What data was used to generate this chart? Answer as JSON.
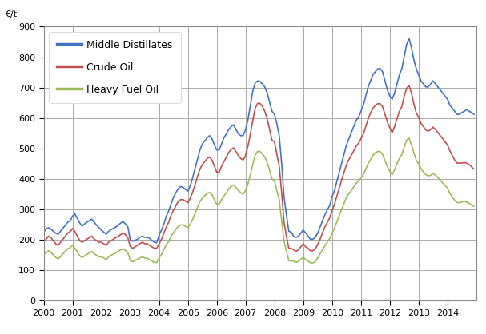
{
  "title": "",
  "unit_label": "€/t",
  "ylim": [
    0,
    900
  ],
  "yticks": [
    0,
    100,
    200,
    300,
    400,
    500,
    600,
    700,
    800,
    900
  ],
  "years": [
    2000,
    2001,
    2002,
    2003,
    2004,
    2005,
    2006,
    2007,
    2008,
    2009,
    2010,
    2011,
    2012,
    2013,
    2014
  ],
  "xlim_start": 2000,
  "xlim_end": 2015,
  "background_color": "#ffffff",
  "grid_color": "#aaaaaa",
  "series": {
    "Middle Distillates": {
      "color": "#4472c4",
      "monthly_values": [
        225,
        235,
        240,
        235,
        228,
        222,
        218,
        228,
        238,
        248,
        258,
        262,
        278,
        285,
        270,
        255,
        245,
        252,
        258,
        263,
        268,
        258,
        248,
        240,
        232,
        225,
        218,
        228,
        233,
        238,
        242,
        248,
        255,
        260,
        252,
        242,
        200,
        195,
        198,
        202,
        208,
        212,
        208,
        208,
        205,
        198,
        192,
        190,
        215,
        232,
        252,
        278,
        295,
        318,
        340,
        355,
        368,
        375,
        372,
        365,
        360,
        378,
        405,
        435,
        465,
        495,
        515,
        525,
        535,
        542,
        532,
        512,
        495,
        495,
        515,
        535,
        548,
        562,
        572,
        578,
        562,
        548,
        542,
        542,
        562,
        595,
        642,
        688,
        715,
        722,
        720,
        712,
        702,
        682,
        652,
        622,
        612,
        582,
        542,
        452,
        342,
        282,
        228,
        225,
        212,
        208,
        212,
        222,
        232,
        222,
        212,
        202,
        202,
        208,
        222,
        242,
        262,
        282,
        298,
        312,
        342,
        362,
        392,
        422,
        452,
        482,
        512,
        532,
        552,
        572,
        592,
        602,
        622,
        642,
        672,
        702,
        722,
        742,
        752,
        762,
        762,
        752,
        722,
        692,
        672,
        662,
        682,
        712,
        742,
        762,
        802,
        842,
        862,
        832,
        792,
        762,
        742,
        722,
        712,
        702,
        702,
        712,
        722,
        712,
        702,
        692,
        682,
        672,
        662,
        642,
        632,
        622,
        612,
        612,
        618,
        622,
        628,
        622,
        618,
        612
      ]
    },
    "Crude Oil": {
      "color": "#c0504d",
      "monthly_values": [
        192,
        202,
        212,
        207,
        197,
        187,
        182,
        192,
        202,
        212,
        222,
        227,
        237,
        227,
        212,
        197,
        192,
        197,
        202,
        207,
        212,
        202,
        197,
        192,
        192,
        187,
        182,
        192,
        197,
        202,
        207,
        212,
        217,
        222,
        217,
        207,
        178,
        172,
        177,
        182,
        187,
        192,
        187,
        187,
        182,
        177,
        172,
        172,
        187,
        202,
        222,
        242,
        258,
        282,
        297,
        312,
        327,
        332,
        332,
        327,
        322,
        337,
        357,
        382,
        408,
        432,
        447,
        457,
        467,
        472,
        462,
        442,
        422,
        422,
        442,
        457,
        472,
        487,
        497,
        502,
        490,
        477,
        467,
        462,
        477,
        508,
        548,
        592,
        632,
        648,
        648,
        638,
        622,
        597,
        562,
        527,
        522,
        482,
        442,
        357,
        257,
        212,
        172,
        172,
        167,
        162,
        167,
        177,
        187,
        177,
        172,
        164,
        164,
        170,
        184,
        202,
        222,
        242,
        257,
        272,
        297,
        317,
        344,
        370,
        397,
        422,
        447,
        464,
        477,
        492,
        507,
        517,
        532,
        547,
        572,
        597,
        617,
        632,
        642,
        647,
        647,
        637,
        612,
        587,
        568,
        552,
        572,
        597,
        622,
        637,
        672,
        697,
        707,
        682,
        647,
        617,
        602,
        582,
        572,
        560,
        557,
        562,
        570,
        562,
        552,
        542,
        532,
        522,
        512,
        492,
        477,
        462,
        452,
        452,
        452,
        454,
        452,
        447,
        440,
        432
      ]
    },
    "Heavy Fuel Oil": {
      "color": "#9bbb59",
      "monthly_values": [
        152,
        157,
        164,
        159,
        150,
        142,
        137,
        145,
        154,
        162,
        170,
        174,
        182,
        172,
        160,
        147,
        142,
        147,
        152,
        157,
        162,
        154,
        149,
        144,
        144,
        140,
        135,
        143,
        149,
        153,
        157,
        162,
        167,
        170,
        165,
        157,
        132,
        128,
        132,
        136,
        140,
        144,
        140,
        139,
        135,
        130,
        126,
        125,
        140,
        152,
        168,
        184,
        194,
        212,
        224,
        234,
        244,
        249,
        249,
        244,
        240,
        252,
        268,
        288,
        307,
        326,
        337,
        345,
        352,
        356,
        348,
        332,
        317,
        317,
        332,
        344,
        355,
        367,
        376,
        380,
        372,
        362,
        355,
        350,
        362,
        384,
        414,
        448,
        478,
        490,
        490,
        482,
        472,
        454,
        428,
        400,
        394,
        362,
        332,
        264,
        197,
        162,
        132,
        130,
        130,
        126,
        129,
        136,
        142,
        135,
        130,
        124,
        124,
        128,
        140,
        154,
        167,
        180,
        192,
        204,
        222,
        238,
        260,
        280,
        300,
        320,
        340,
        352,
        362,
        374,
        385,
        394,
        402,
        414,
        432,
        450,
        464,
        477,
        486,
        490,
        490,
        480,
        460,
        440,
        425,
        414,
        430,
        450,
        468,
        480,
        505,
        527,
        534,
        512,
        486,
        462,
        450,
        434,
        422,
        414,
        410,
        412,
        418,
        412,
        404,
        396,
        387,
        378,
        370,
        352,
        340,
        330,
        322,
        322,
        324,
        326,
        324,
        320,
        314,
        310
      ]
    }
  },
  "legend_items": [
    "Middle Distillates",
    "Crude Oil",
    "Heavy Fuel Oil"
  ],
  "legend_colors": [
    "#4472c4",
    "#c0504d",
    "#9bbb59"
  ],
  "linewidth": 1.2,
  "tick_fontsize": 8,
  "legend_fontsize": 9
}
